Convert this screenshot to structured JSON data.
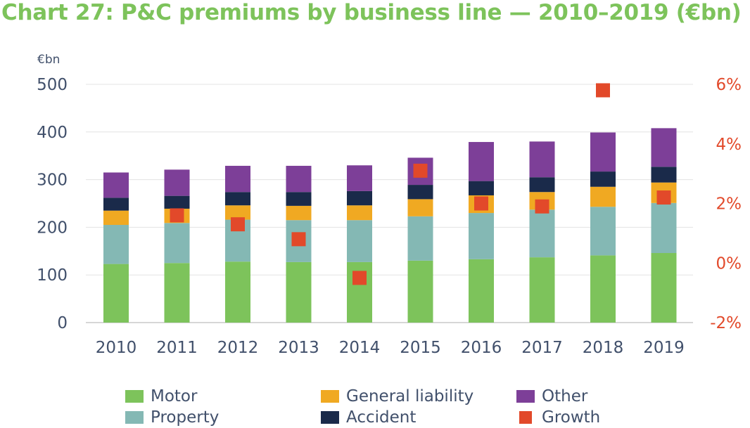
{
  "title": "Chart 27: P&C premiums by business line — 2010–2019 (€bn)",
  "chart_data": {
    "type": "bar",
    "stacked": true,
    "unit_label": "€bn",
    "categories": [
      "2010",
      "2011",
      "2012",
      "2013",
      "2014",
      "2015",
      "2016",
      "2017",
      "2018",
      "2019"
    ],
    "ylim": [
      0,
      500
    ],
    "yticks": [
      "0",
      "100",
      "200",
      "300",
      "400",
      "500"
    ],
    "y2lim": [
      -2,
      6
    ],
    "y2ticks": [
      "-2%",
      "0%",
      "2%",
      "4%",
      "6%"
    ],
    "grid": true,
    "legend_position": "bottom",
    "series": [
      {
        "name": "Motor",
        "color": "#7dc35b",
        "values": [
          123,
          125,
          128,
          127,
          127,
          130,
          133,
          137,
          141,
          146
        ]
      },
      {
        "name": "Property",
        "color": "#84b8b4",
        "values": [
          82,
          84,
          88,
          88,
          88,
          93,
          97,
          100,
          102,
          105
        ]
      },
      {
        "name": "General liability",
        "color": "#f0a922",
        "values": [
          30,
          30,
          30,
          30,
          31,
          36,
          37,
          37,
          42,
          43
        ]
      },
      {
        "name": "Accident",
        "color": "#1a2a4a",
        "values": [
          27,
          27,
          28,
          29,
          30,
          30,
          30,
          31,
          32,
          33
        ]
      },
      {
        "name": "Other",
        "color": "#7d3f98",
        "values": [
          53,
          55,
          55,
          55,
          54,
          57,
          82,
          75,
          82,
          81
        ]
      }
    ],
    "growth": {
      "name": "Growth",
      "color": "#e2492a",
      "axis": "right",
      "values": [
        null,
        1.6,
        1.3,
        0.8,
        -0.5,
        3.1,
        2.0,
        1.9,
        5.8,
        2.2
      ]
    }
  }
}
